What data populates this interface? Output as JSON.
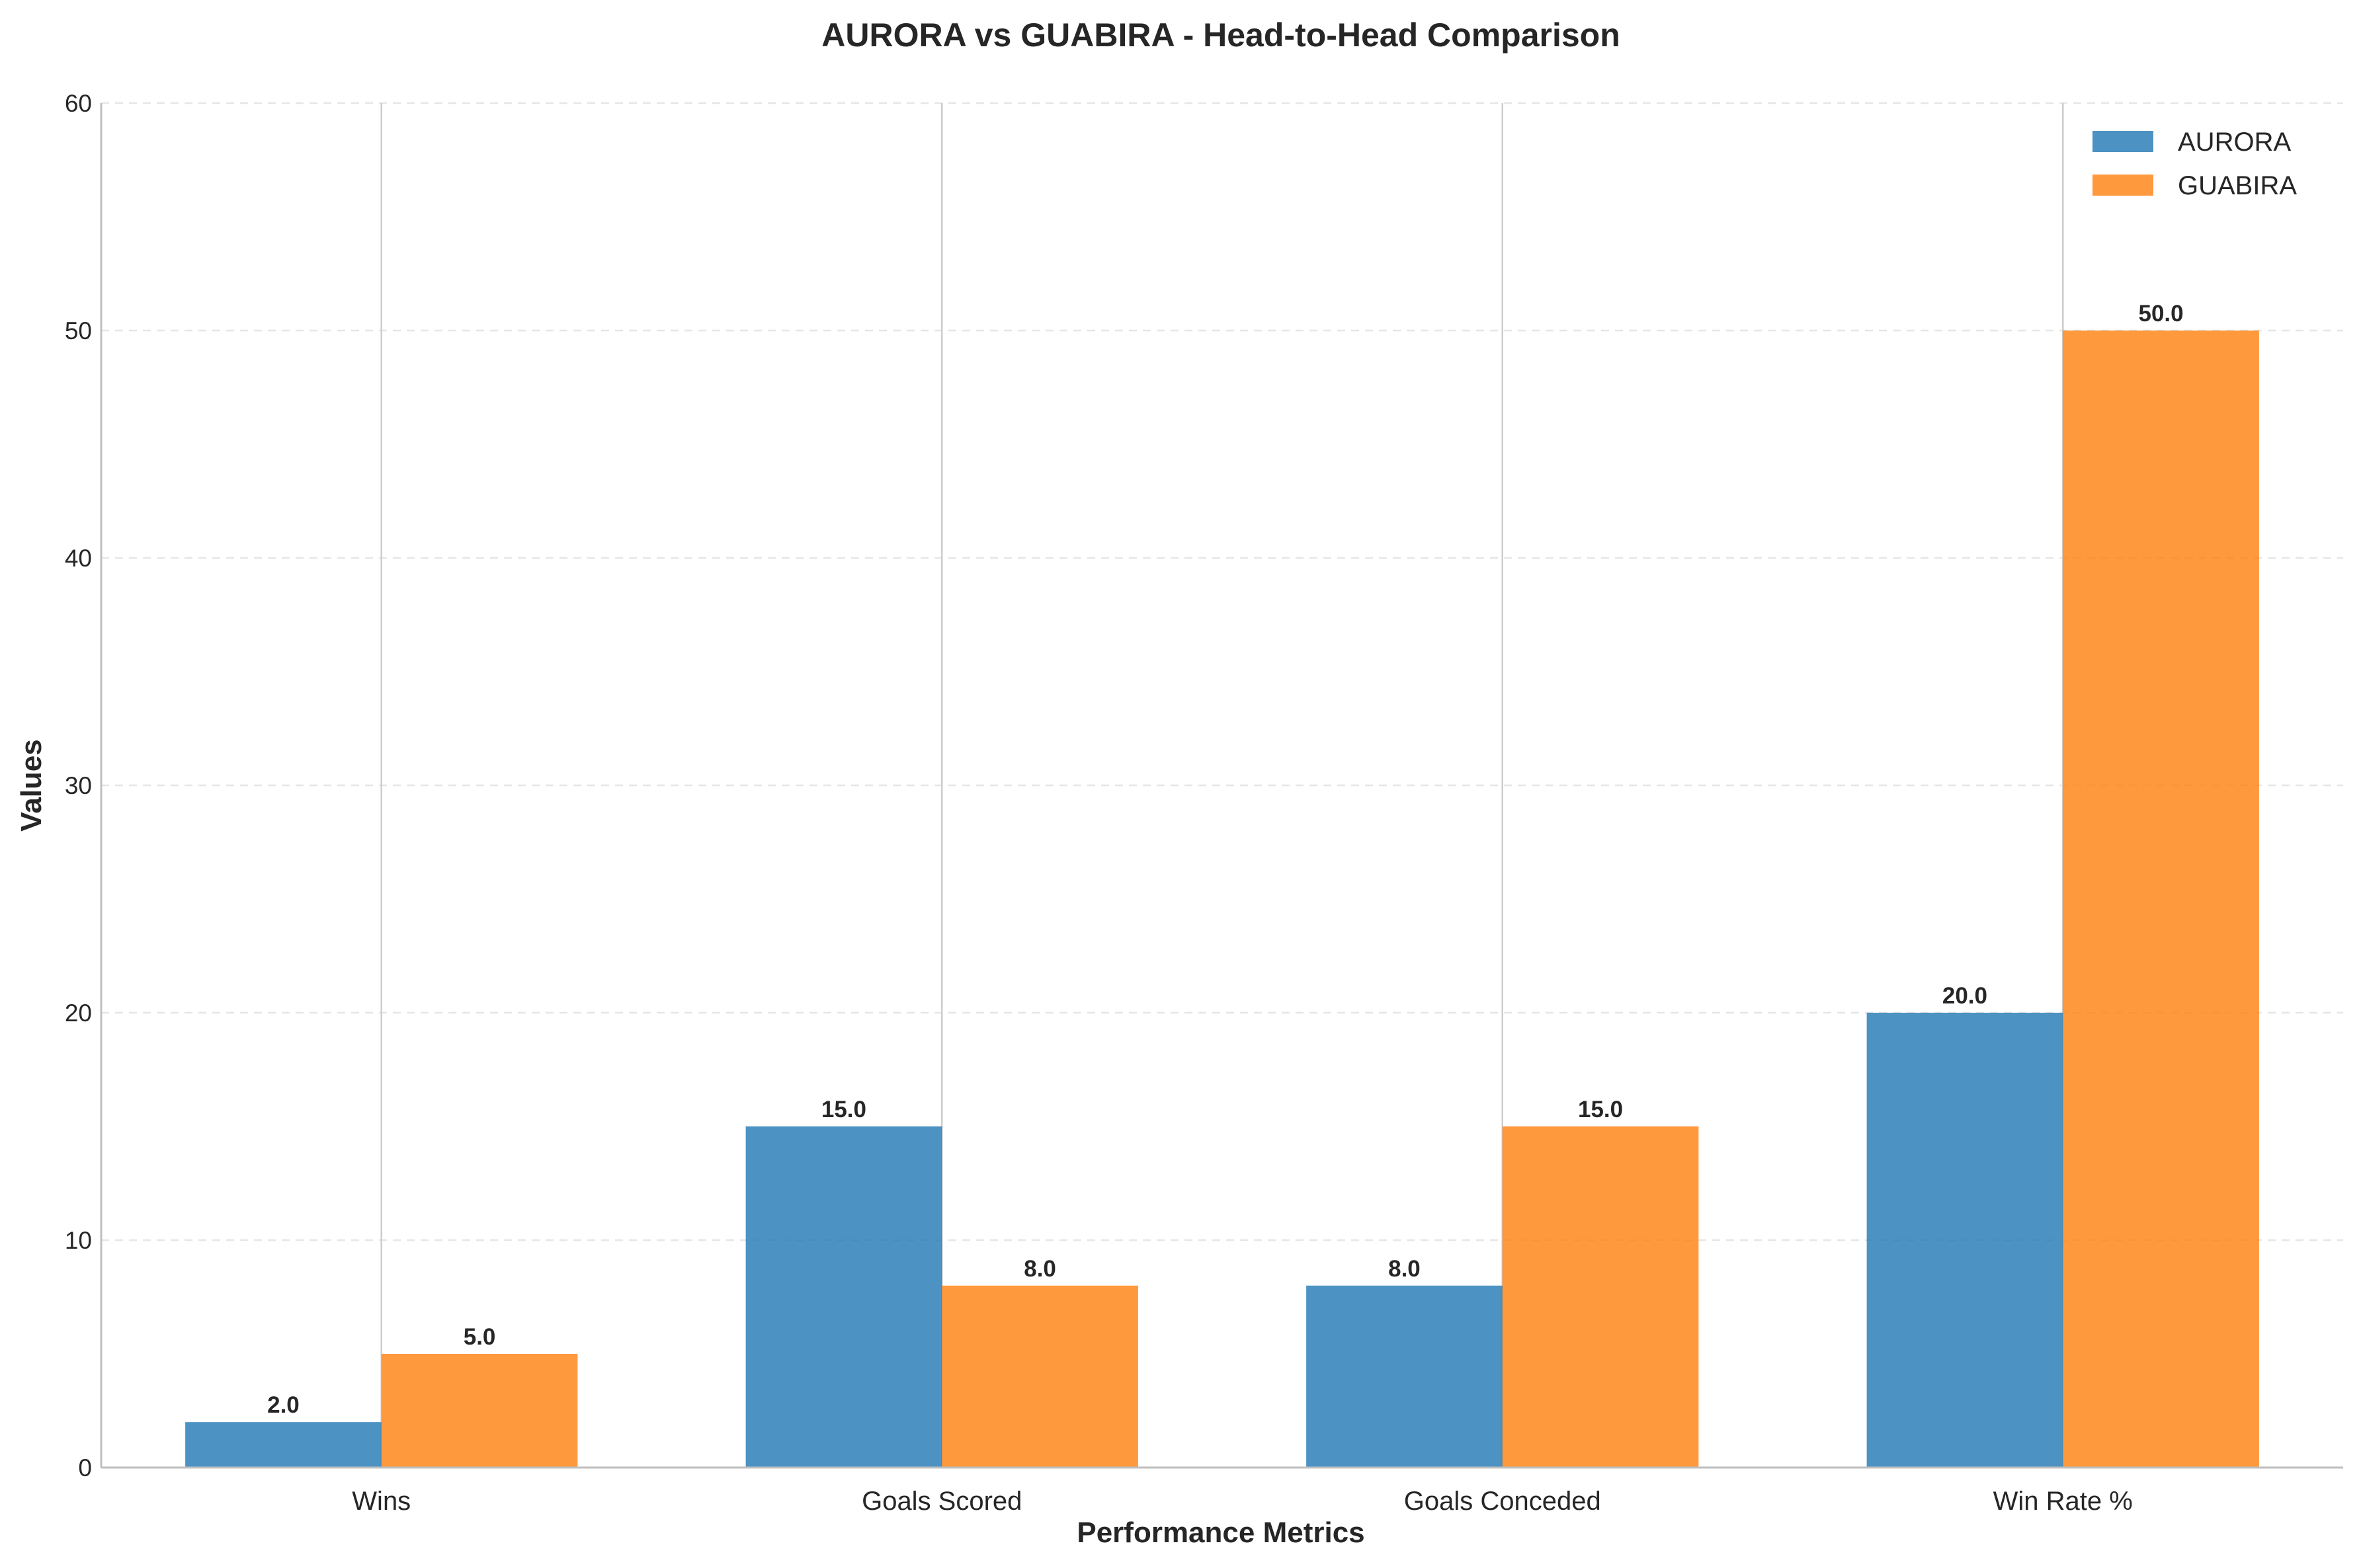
{
  "chart_data": {
    "type": "bar",
    "title": "AURORA vs GUABIRA - Head-to-Head Comparison",
    "xlabel": "Performance Metrics",
    "ylabel": "Values",
    "categories": [
      "Wins",
      "Goals Scored",
      "Goals Conceded",
      "Win Rate %"
    ],
    "series": [
      {
        "name": "AURORA",
        "color": "#1f77b4",
        "values": [
          2.0,
          15.0,
          8.0,
          20.0
        ],
        "value_labels": [
          "2.0",
          "15.0",
          "8.0",
          "20.0"
        ]
      },
      {
        "name": "GUABIRA",
        "color": "#ff7f0e",
        "values": [
          5.0,
          8.0,
          15.0,
          50.0
        ],
        "value_labels": [
          "5.0",
          "8.0",
          "15.0",
          "50.0"
        ]
      }
    ],
    "ylim": [
      0,
      60
    ],
    "yticks": [
      0,
      10,
      20,
      30,
      40,
      50,
      60
    ],
    "ytick_labels": [
      "0",
      "10",
      "20",
      "30",
      "40",
      "50",
      "60"
    ],
    "grid": "horizontal dashed",
    "legend_position": "top-right"
  }
}
